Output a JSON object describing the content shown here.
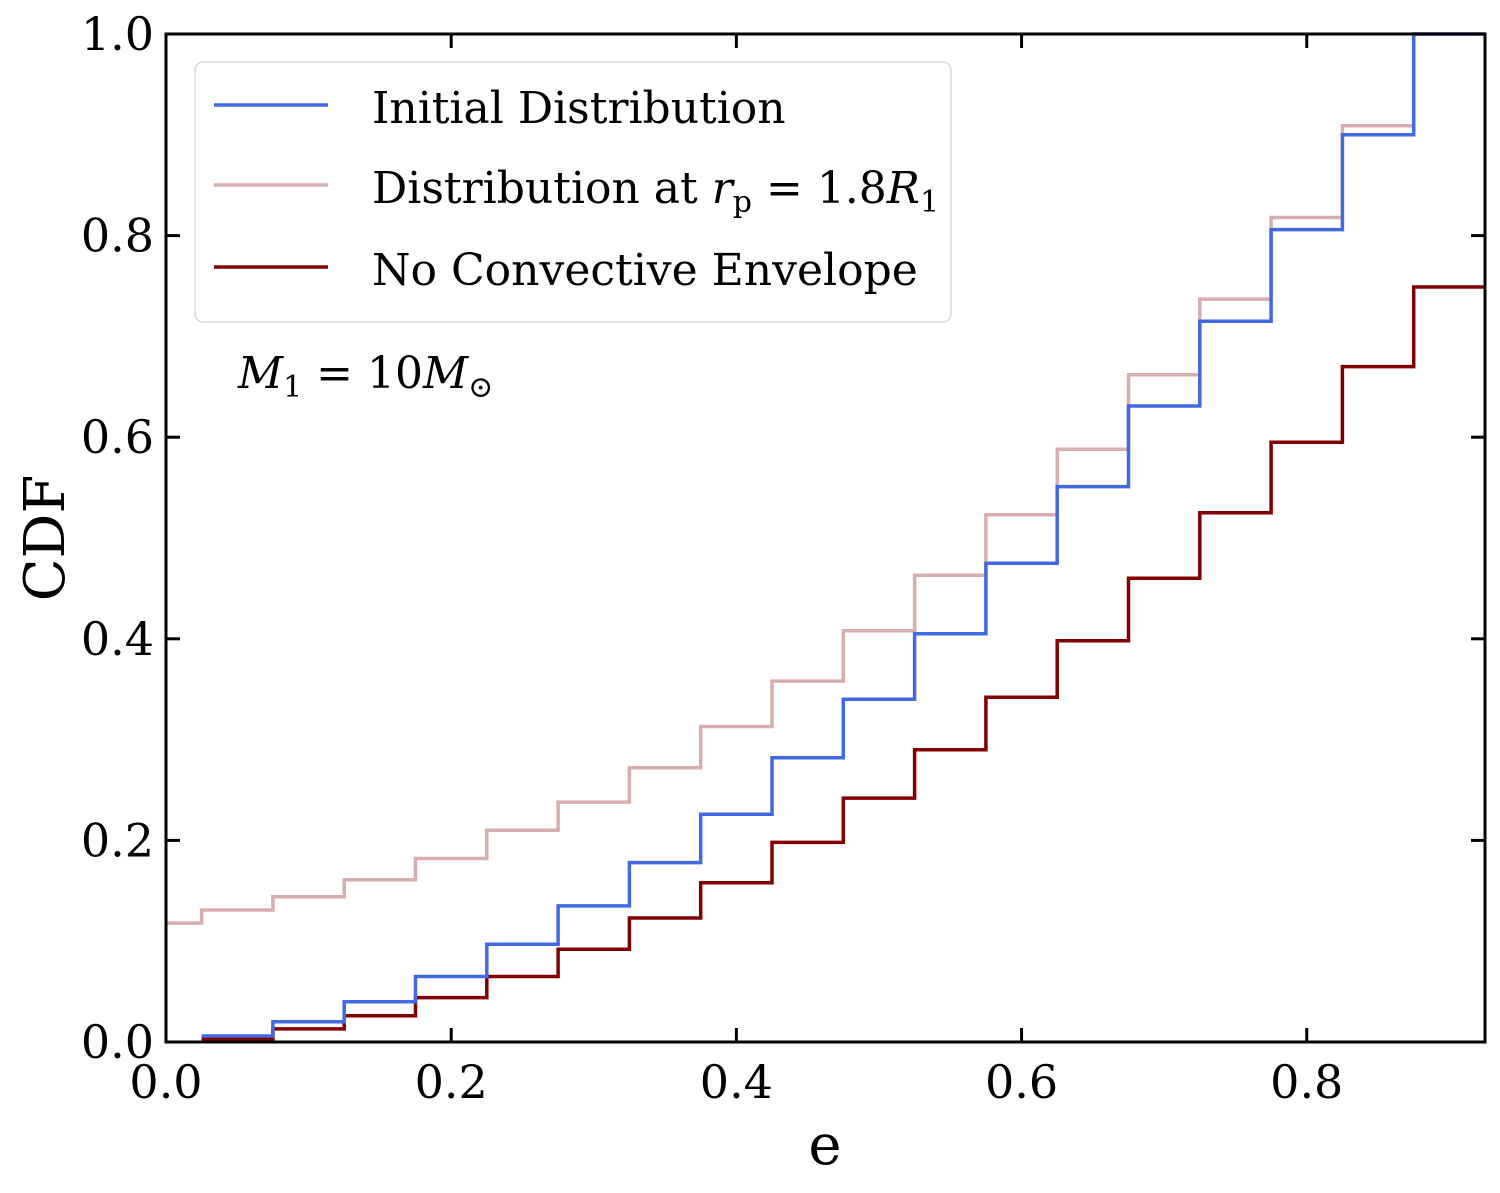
{
  "chart_data": {
    "type": "line",
    "step": true,
    "xlabel": "e",
    "ylabel": "CDF",
    "xlim": [
      0.0,
      0.925
    ],
    "ylim": [
      0.0,
      1.0
    ],
    "xticks": [
      "0.0",
      "0.2",
      "0.4",
      "0.6",
      "0.8"
    ],
    "xtick_values": [
      0.0,
      0.2,
      0.4,
      0.6,
      0.8
    ],
    "yticks": [
      "0.0",
      "0.2",
      "0.4",
      "0.6",
      "0.8",
      "1.0"
    ],
    "ytick_values": [
      0.0,
      0.2,
      0.4,
      0.6,
      0.8,
      1.0
    ],
    "grid": false,
    "legend_position": "top-left",
    "annotation": {
      "prefix": "M",
      "sub": "1",
      "eq": "10",
      "sym": "M",
      "symsub": "⊙"
    },
    "series": [
      {
        "name": "Initial Distribution",
        "color": "#4169e1",
        "x": [
          0.025,
          0.075,
          0.125,
          0.175,
          0.225,
          0.275,
          0.325,
          0.375,
          0.425,
          0.475,
          0.525,
          0.575,
          0.625,
          0.675,
          0.725,
          0.775,
          0.825,
          0.875
        ],
        "y": [
          0.006,
          0.02,
          0.04,
          0.065,
          0.097,
          0.135,
          0.178,
          0.226,
          0.282,
          0.34,
          0.405,
          0.475,
          0.551,
          0.631,
          0.715,
          0.806,
          0.9,
          1.0
        ]
      },
      {
        "name": "Distribution at",
        "name_math": {
          "r": "r",
          "sub": "p",
          "eq": "1.8",
          "R": "R",
          "Rsub": "1"
        },
        "color": "#d8adae",
        "x": [
          0.0,
          0.025,
          0.075,
          0.125,
          0.175,
          0.225,
          0.275,
          0.325,
          0.375,
          0.425,
          0.475,
          0.525,
          0.575,
          0.625,
          0.675,
          0.725,
          0.775,
          0.825,
          0.875
        ],
        "y": [
          0.118,
          0.131,
          0.144,
          0.161,
          0.182,
          0.21,
          0.238,
          0.272,
          0.313,
          0.358,
          0.408,
          0.463,
          0.523,
          0.588,
          0.662,
          0.737,
          0.818,
          0.909,
          1.0
        ]
      },
      {
        "name": "No Convective Envelope",
        "color": "#800000",
        "x": [
          0.025,
          0.075,
          0.125,
          0.175,
          0.225,
          0.275,
          0.325,
          0.375,
          0.425,
          0.475,
          0.525,
          0.575,
          0.625,
          0.675,
          0.725,
          0.775,
          0.825,
          0.875
        ],
        "y": [
          0.003,
          0.013,
          0.026,
          0.044,
          0.065,
          0.092,
          0.123,
          0.158,
          0.198,
          0.242,
          0.29,
          0.342,
          0.398,
          0.46,
          0.525,
          0.595,
          0.67,
          0.749
        ]
      }
    ]
  }
}
